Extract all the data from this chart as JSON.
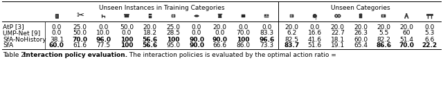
{
  "title_left": "Unseen Instances in Training Categories",
  "title_right": "Unseen Categories",
  "row_labels": [
    "AtP [3]",
    "UMP-Net [9]",
    "SfA-NoHistory",
    "SfA"
  ],
  "data_left": [
    [
      "0.0",
      "25.0",
      "0.0",
      "50.0",
      "20.0",
      "25.0",
      "0.0",
      "20.0",
      "0.0",
      "0.0"
    ],
    [
      "0.0",
      "50.0",
      "10.0",
      "0.0",
      "18.2",
      "28.5",
      "0.0",
      "0.0",
      "70.0",
      "83.3"
    ],
    [
      "38.1",
      "70.0",
      "96.0",
      "100",
      "56.6",
      "100",
      "90.0",
      "90.0",
      "100",
      "96.6"
    ],
    [
      "60.0",
      "61.6",
      "77.5",
      "100",
      "56.6",
      "95.0",
      "90.0",
      "66.6",
      "86.0",
      "73.3"
    ]
  ],
  "data_right": [
    [
      "20.0",
      "0.0",
      "20.0",
      "20.0",
      "20.0",
      "20.0",
      "0.0"
    ],
    [
      "6.2",
      "16.6",
      "22.7",
      "26.3",
      "5.5",
      "60",
      "5.3"
    ],
    [
      "82.5",
      "41.6",
      "18.1",
      "60.0",
      "82.2",
      "51.4",
      "6.6"
    ],
    [
      "83.7",
      "51.6",
      "19.1",
      "65.4",
      "86.6",
      "70.0",
      "22.2"
    ]
  ],
  "bold_left": [
    [
      false,
      false,
      false,
      false,
      false,
      false,
      false,
      false,
      false,
      false
    ],
    [
      false,
      false,
      false,
      false,
      false,
      false,
      false,
      false,
      false,
      false
    ],
    [
      false,
      true,
      true,
      true,
      true,
      true,
      true,
      true,
      true,
      true
    ],
    [
      true,
      false,
      false,
      true,
      true,
      false,
      true,
      false,
      false,
      false
    ]
  ],
  "bold_right": [
    [
      false,
      false,
      false,
      false,
      false,
      false,
      false
    ],
    [
      false,
      false,
      false,
      false,
      false,
      false,
      false
    ],
    [
      false,
      false,
      false,
      false,
      false,
      false,
      false
    ],
    [
      true,
      false,
      false,
      false,
      true,
      true,
      true
    ]
  ],
  "background_color": "#ffffff",
  "font_size": 6.5,
  "caption_normal": "Table 2:  ",
  "caption_bold": "Interaction policy evaluation.",
  "caption_rest": " The interaction policies is evaluated by the optimal action ratio ="
}
